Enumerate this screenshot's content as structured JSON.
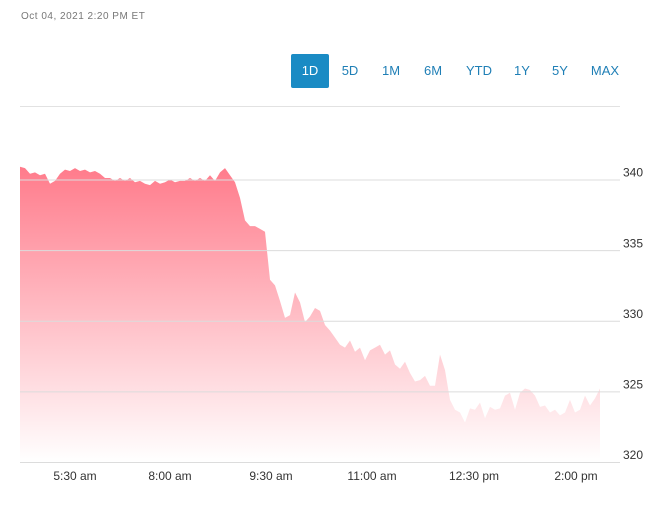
{
  "timestamp": "Oct 04, 2021 2:20 PM ET",
  "ranges": [
    "1D",
    "5D",
    "1M",
    "6M",
    "YTD",
    "1Y",
    "5Y",
    "MAX"
  ],
  "selected_range": 0,
  "chart_data": {
    "type": "area",
    "color": "#ff7b8b",
    "values": [
      340.9,
      340.8,
      340.4,
      340.5,
      340.3,
      340.4,
      339.7,
      339.9,
      340.4,
      340.7,
      340.6,
      340.8,
      340.6,
      340.7,
      340.5,
      340.6,
      340.4,
      340.1,
      340.1,
      339.9,
      340.1,
      339.9,
      340.1,
      339.8,
      339.9,
      339.7,
      339.6,
      339.9,
      339.7,
      339.8,
      340.0,
      339.8,
      339.9,
      339.9,
      340.1,
      339.9,
      340.1,
      339.9,
      340.3,
      339.9,
      340.5,
      340.8,
      340.3,
      339.8,
      338.7,
      337.1,
      336.7,
      336.7,
      336.5,
      336.3,
      332.9,
      332.5,
      331.4,
      330.2,
      330.4,
      332.0,
      331.3,
      329.9,
      330.3,
      330.9,
      330.7,
      329.7,
      329.3,
      328.8,
      328.3,
      328.1,
      328.6,
      327.8,
      328.1,
      327.2,
      327.9,
      328.1,
      328.3,
      327.6,
      327.9,
      326.9,
      326.6,
      327.1,
      326.3,
      325.7,
      325.8,
      326.1,
      325.4,
      325.4,
      327.6,
      326.5,
      324.4,
      323.7,
      323.5,
      322.8,
      323.8,
      323.7,
      324.2,
      323.1,
      323.9,
      323.7,
      323.8,
      324.7,
      324.9,
      323.7,
      324.9,
      325.2,
      325.1,
      324.7,
      323.9,
      324.0,
      323.5,
      323.7,
      323.3,
      323.5,
      324.4,
      323.5,
      323.7,
      324.7,
      324.0,
      324.5,
      325.2
    ],
    "xlim": [
      0,
      116
    ],
    "xticks": [
      {
        "value": 11,
        "label": "5:30 am"
      },
      {
        "value": 30,
        "label": "8:00 am"
      },
      {
        "value": 50.2,
        "label": "9:30 am"
      },
      {
        "value": 70.4,
        "label": "11:00 am"
      },
      {
        "value": 90.8,
        "label": "12:30 pm"
      },
      {
        "value": 111.2,
        "label": "2:00 pm"
      }
    ],
    "ylim": [
      320,
      345.2
    ],
    "yticks": [
      320,
      325,
      330,
      335,
      340
    ],
    "grid": true
  }
}
